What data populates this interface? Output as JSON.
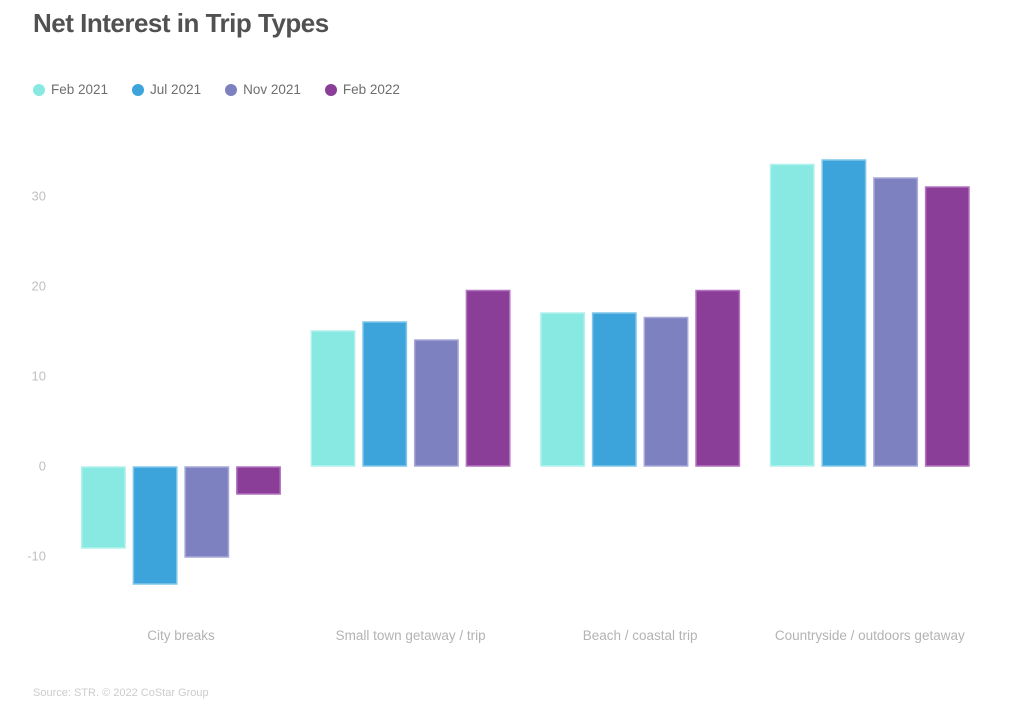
{
  "page": {
    "title": "Net Interest in Trip Types",
    "source": "Source: STR. © 2022 CoStar Group",
    "background": "#ffffff"
  },
  "colors": {
    "title_text": "#515151",
    "legend_text": "#6e6e6e",
    "axis_tick_text": "#c0c0c0",
    "category_text": "#b3b3b3",
    "source_text": "#cccccc"
  },
  "chart_data": {
    "type": "bar",
    "title": "Net Interest in Trip Types",
    "xlabel": "",
    "ylabel": "",
    "grid": false,
    "legend_position": "top-left",
    "categories": [
      "City breaks",
      "Small town getaway / trip",
      "Beach / coastal trip",
      "Countryside / outdoors getaway"
    ],
    "series": [
      {
        "name": "Feb 2021",
        "color": "#87e9e1",
        "border_color": "#b2f2ec",
        "values": [
          -9,
          15,
          17,
          33.5
        ]
      },
      {
        "name": "Jul 2021",
        "color": "#3ca4db",
        "border_color": "#7fc6ea",
        "values": [
          -13,
          16,
          17,
          34
        ]
      },
      {
        "name": "Nov 2021",
        "color": "#7e81c0",
        "border_color": "#a7a9d8",
        "values": [
          -10,
          14,
          16.5,
          32
        ]
      },
      {
        "name": "Feb 2022",
        "color": "#8b3e98",
        "border_color": "#b474bf",
        "values": [
          -3,
          19.5,
          19.5,
          31
        ]
      }
    ],
    "y_ticks": [
      -10,
      0,
      10,
      20,
      30
    ],
    "ylim": [
      -15,
      36
    ]
  }
}
